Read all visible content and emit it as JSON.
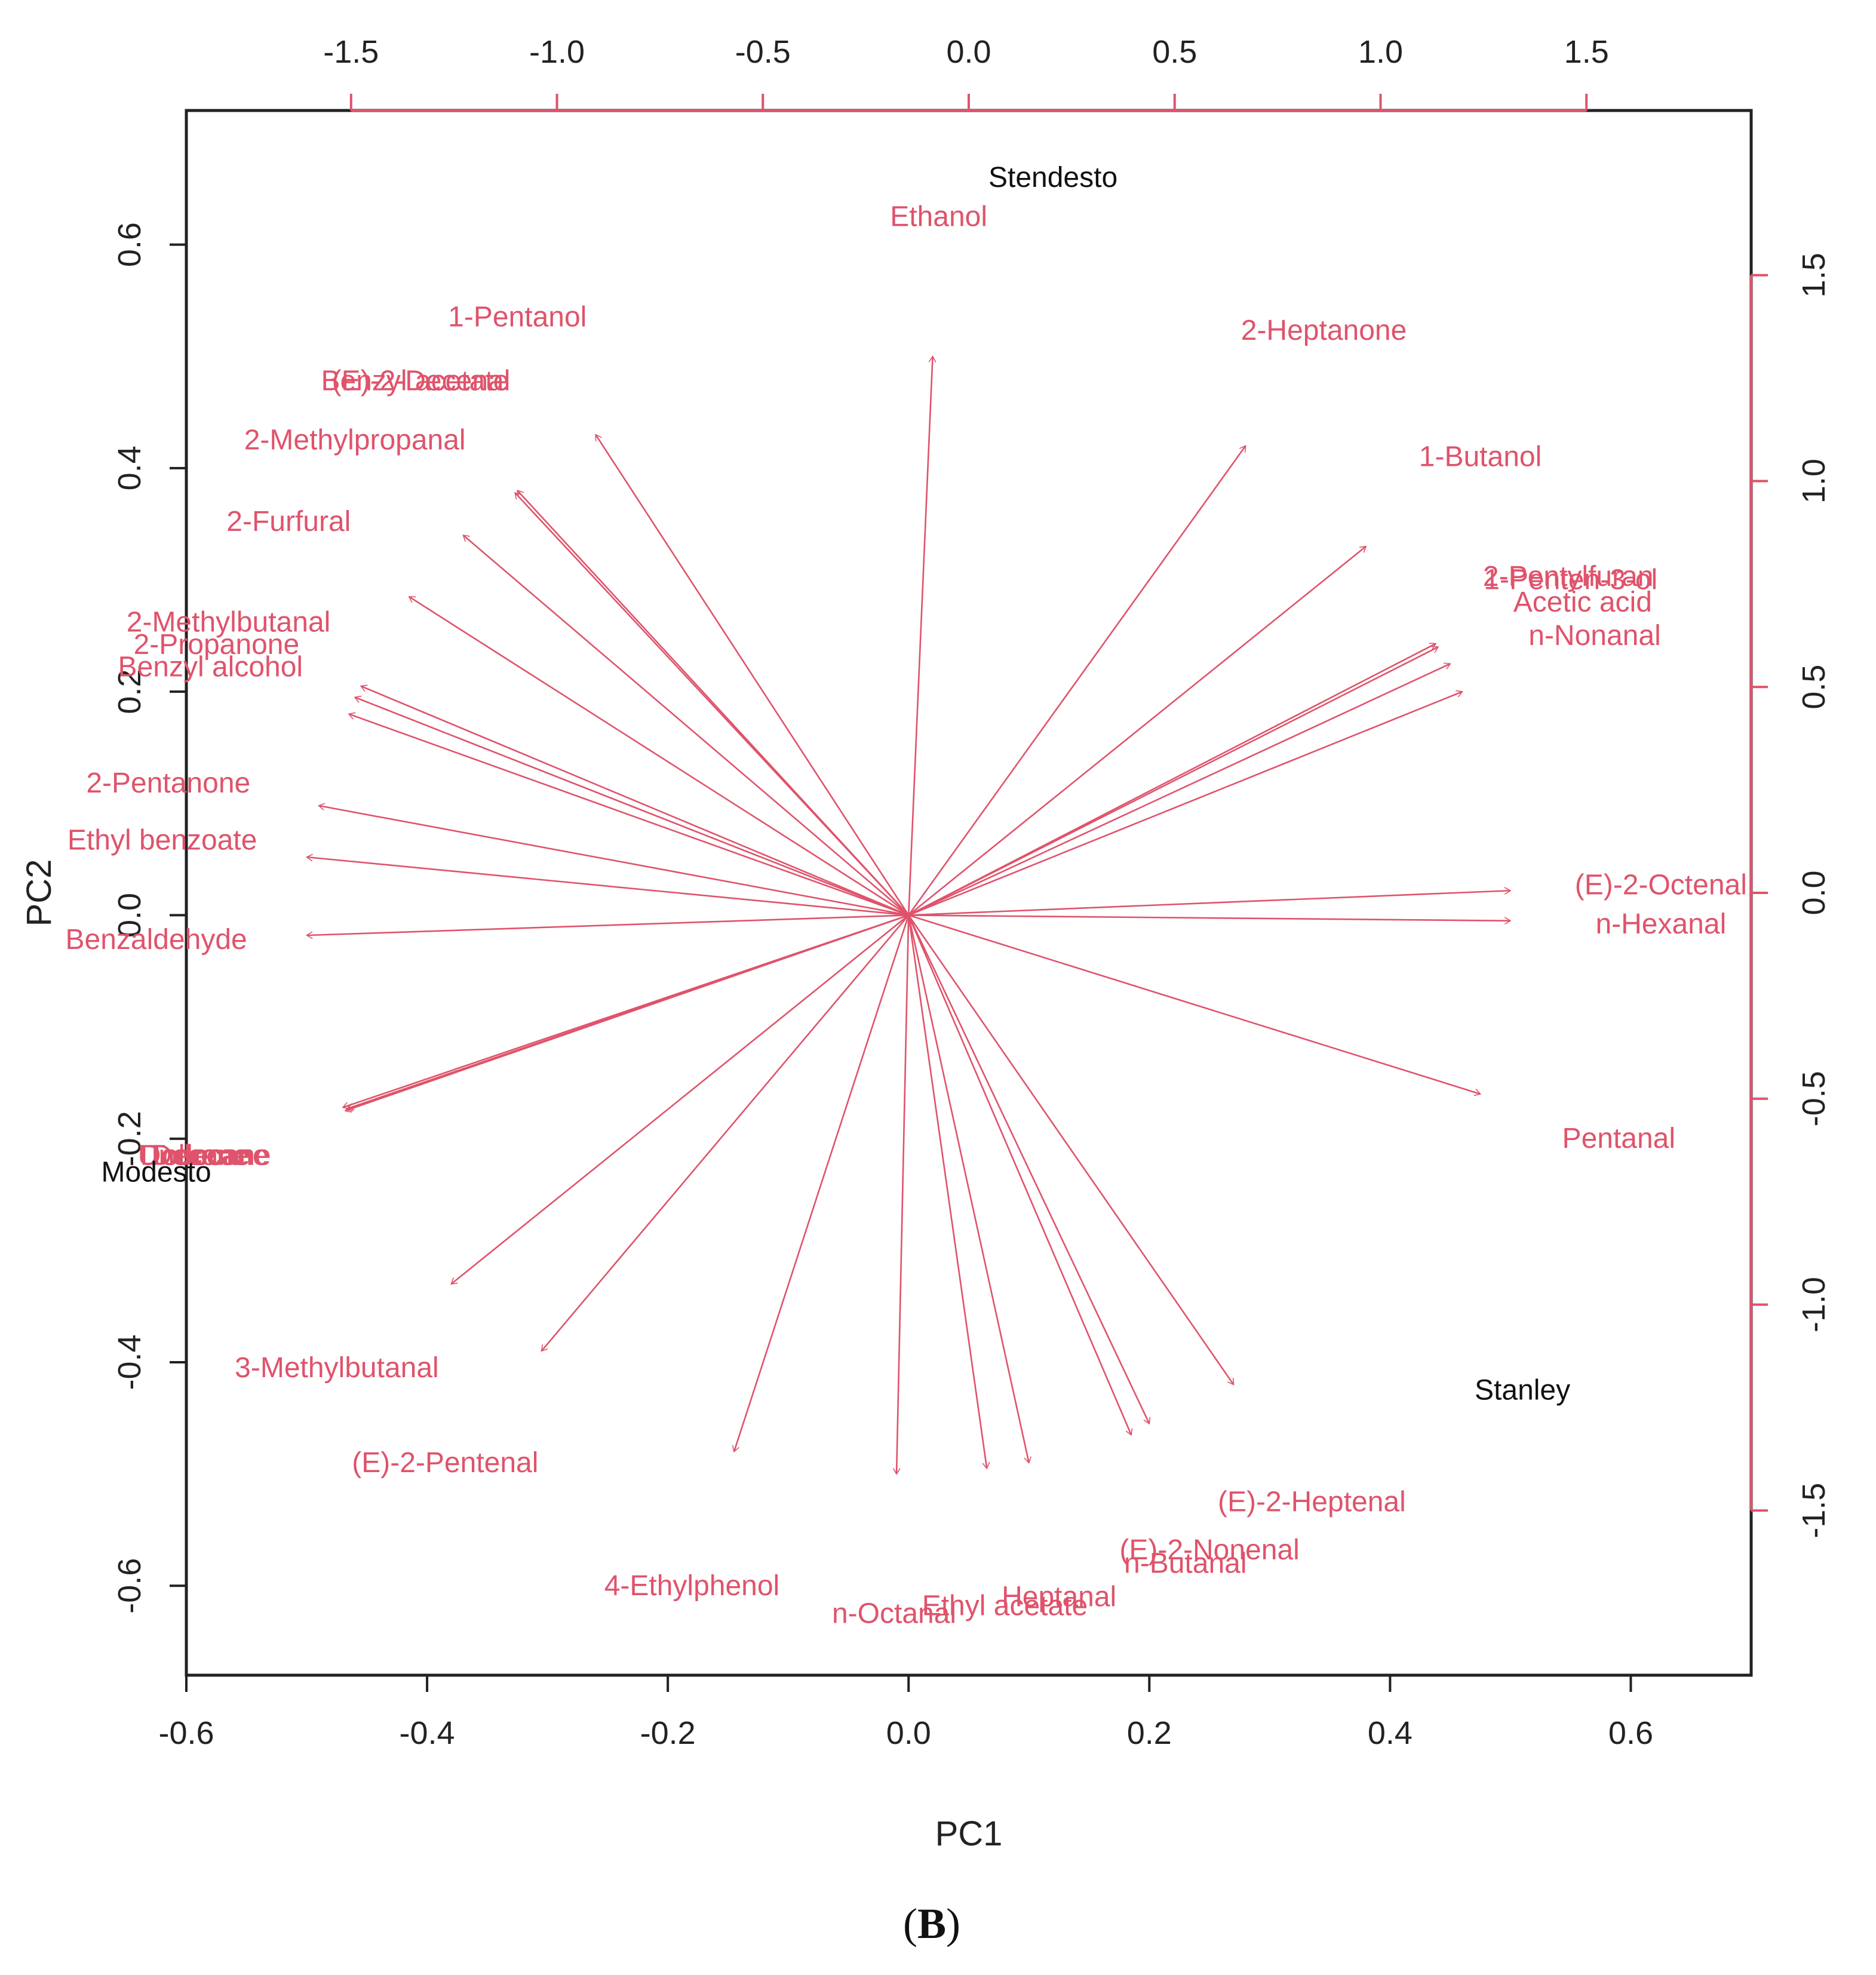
{
  "panel_label": {
    "open": "(",
    "letter": "B",
    "close": ")"
  },
  "chart_data": {
    "type": "scatter",
    "subtype": "pca_biplot",
    "title": "",
    "xlabel": "PC1",
    "ylabel": "PC2",
    "xlim": [
      -0.6,
      0.7
    ],
    "ylim": [
      -0.68,
      0.72
    ],
    "xticks": [
      "-0.6",
      "-0.4",
      "-0.2",
      "0.0",
      "0.2",
      "0.4",
      "0.6"
    ],
    "yticks": [
      "-0.6",
      "-0.4",
      "-0.2",
      "0.0",
      "0.2",
      "0.4",
      "0.6"
    ],
    "top_xlim": [
      -1.9,
      1.9
    ],
    "right_ylim": [
      -1.9,
      1.9
    ],
    "top_xticks": [
      "-1.5",
      "-1.0",
      "-0.5",
      "0.0",
      "0.5",
      "1.0",
      "1.5"
    ],
    "right_yticks": [
      "-1.5",
      "-1.0",
      "-0.5",
      "0.0",
      "0.5",
      "1.0",
      "1.5"
    ],
    "colors": {
      "variables": "#DF536B",
      "observations": "#111111",
      "axes": "#222222"
    },
    "observations": [
      {
        "name": "Stendesto",
        "x": 0.12,
        "y": 0.66
      },
      {
        "name": "Modesto",
        "x": -0.625,
        "y": -0.23
      },
      {
        "name": "Stanley",
        "x": 0.51,
        "y": -0.425
      }
    ],
    "variables": [
      {
        "name": "Ethanol",
        "x": 0.02,
        "y": 0.5,
        "lx": 0.025,
        "ly": 0.625
      },
      {
        "name": "1-Pentanol",
        "x": -0.26,
        "y": 0.43,
        "lx": -0.325,
        "ly": 0.535
      },
      {
        "name": "Benzyl acetate",
        "x": -0.325,
        "y": 0.38,
        "lx": -0.41,
        "ly": 0.478
      },
      {
        "name": "(E)-2-Decenal",
        "x": -0.327,
        "y": 0.378,
        "lx": -0.405,
        "ly": 0.478
      },
      {
        "name": "2-Methylpropanal",
        "x": -0.37,
        "y": 0.34,
        "lx": -0.46,
        "ly": 0.425
      },
      {
        "name": "2-Furfural",
        "x": -0.415,
        "y": 0.285,
        "lx": -0.515,
        "ly": 0.352
      },
      {
        "name": "2-Methylbutanal",
        "x": -0.455,
        "y": 0.205,
        "lx": -0.565,
        "ly": 0.262
      },
      {
        "name": "2-Propanone",
        "x": -0.46,
        "y": 0.195,
        "lx": -0.575,
        "ly": 0.242
      },
      {
        "name": "Benzyl alcohol",
        "x": -0.465,
        "y": 0.18,
        "lx": -0.58,
        "ly": 0.222
      },
      {
        "name": "2-Pentanone",
        "x": -0.49,
        "y": 0.098,
        "lx": -0.615,
        "ly": 0.118
      },
      {
        "name": "Ethyl benzoate",
        "x": -0.5,
        "y": 0.052,
        "lx": -0.62,
        "ly": 0.067
      },
      {
        "name": "Benzaldehyde",
        "x": -0.5,
        "y": -0.018,
        "lx": -0.625,
        "ly": -0.022
      },
      {
        "name": "Toluene",
        "x": -0.47,
        "y": -0.172,
        "lx": -0.59,
        "ly": -0.215
      },
      {
        "name": "Decane",
        "x": -0.468,
        "y": -0.175,
        "lx": -0.588,
        "ly": -0.215
      },
      {
        "name": "Undecane",
        "x": -0.467,
        "y": -0.174,
        "lx": -0.586,
        "ly": -0.215
      },
      {
        "name": "Dodecane",
        "x": -0.466,
        "y": -0.173,
        "lx": -0.584,
        "ly": -0.215
      },
      {
        "name": "3-Methylbutanal",
        "x": -0.38,
        "y": -0.33,
        "lx": -0.475,
        "ly": -0.405
      },
      {
        "name": "(E)-2-Pentenal",
        "x": -0.305,
        "y": -0.39,
        "lx": -0.385,
        "ly": -0.49
      },
      {
        "name": "4-Ethylphenol",
        "x": -0.145,
        "y": -0.48,
        "lx": -0.18,
        "ly": -0.6
      },
      {
        "name": "n-Octanal",
        "x": -0.01,
        "y": -0.5,
        "lx": -0.012,
        "ly": -0.625
      },
      {
        "name": "Ethyl acetate",
        "x": 0.065,
        "y": -0.495,
        "lx": 0.08,
        "ly": -0.618
      },
      {
        "name": "Heptanal",
        "x": 0.1,
        "y": -0.49,
        "lx": 0.125,
        "ly": -0.61
      },
      {
        "name": "n-Butanal",
        "x": 0.185,
        "y": -0.465,
        "lx": 0.23,
        "ly": -0.58
      },
      {
        "name": "(E)-2-Nonenal",
        "x": 0.2,
        "y": -0.455,
        "lx": 0.25,
        "ly": -0.568
      },
      {
        "name": "(E)-2-Heptenal",
        "x": 0.27,
        "y": -0.42,
        "lx": 0.335,
        "ly": -0.525
      },
      {
        "name": "Pentanal",
        "x": 0.475,
        "y": -0.16,
        "lx": 0.59,
        "ly": -0.2
      },
      {
        "name": "n-Hexanal",
        "x": 0.5,
        "y": -0.005,
        "lx": 0.625,
        "ly": -0.008
      },
      {
        "name": "(E)-2-Octenal",
        "x": 0.5,
        "y": 0.022,
        "lx": 0.625,
        "ly": 0.027
      },
      {
        "name": "n-Nonanal",
        "x": 0.46,
        "y": 0.2,
        "lx": 0.57,
        "ly": 0.25
      },
      {
        "name": "Acetic acid",
        "x": 0.45,
        "y": 0.225,
        "lx": 0.56,
        "ly": 0.28
      },
      {
        "name": "1-Penten-3-ol",
        "x": 0.44,
        "y": 0.24,
        "lx": 0.55,
        "ly": 0.3
      },
      {
        "name": "2-Pentylfuran",
        "x": 0.438,
        "y": 0.243,
        "lx": 0.548,
        "ly": 0.303
      },
      {
        "name": "1-Butanol",
        "x": 0.38,
        "y": 0.33,
        "lx": 0.475,
        "ly": 0.41
      },
      {
        "name": "2-Heptanone",
        "x": 0.28,
        "y": 0.42,
        "lx": 0.345,
        "ly": 0.523
      }
    ]
  }
}
